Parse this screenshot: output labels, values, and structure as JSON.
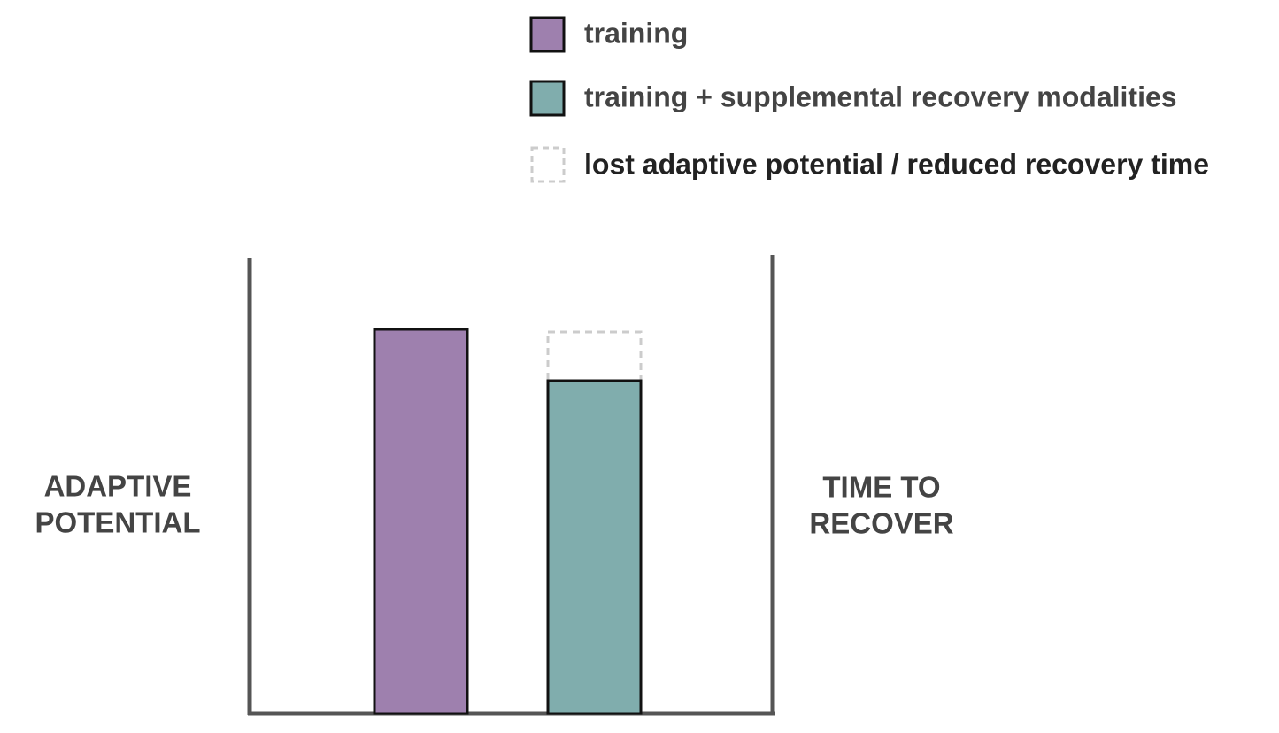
{
  "legend": {
    "items": [
      {
        "label": "training"
      },
      {
        "label": "training + supplemental recovery modalities"
      },
      {
        "label": "lost adaptive potential / reduced recovery time"
      }
    ]
  },
  "left_label": {
    "lines": [
      "ADAPTIVE",
      "POTENTIAL"
    ]
  },
  "right_label": {
    "lines": [
      "TIME TO",
      "RECOVER"
    ]
  }
}
